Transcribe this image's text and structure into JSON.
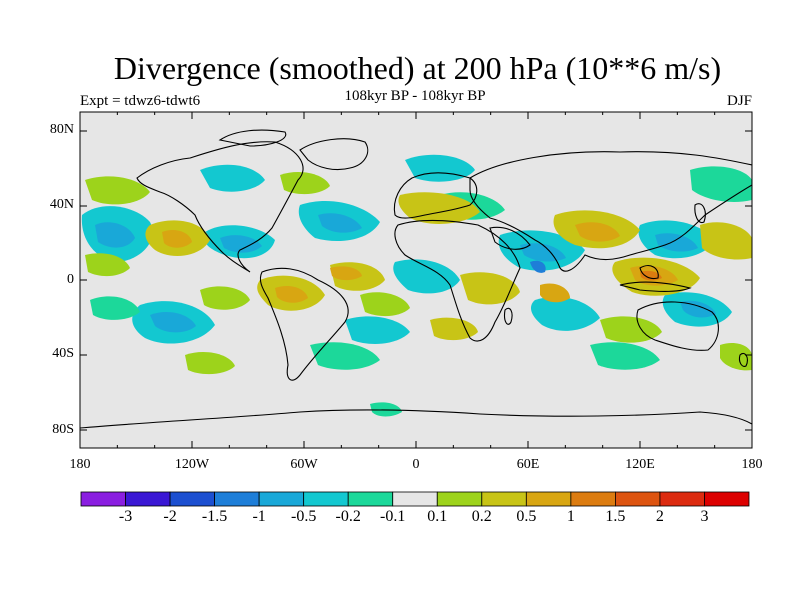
{
  "title": "Divergence (smoothed) at 200 hPa (10**6 m/s)",
  "subtitle": "108kyr BP - 108kyr BP",
  "left_string": "Expt = tdwz6-tdwt6",
  "right_string": "DJF",
  "lat_labels": [
    "80N",
    "40N",
    "0",
    "40S",
    "80S"
  ],
  "lon_labels": [
    "180",
    "120W",
    "60W",
    "0",
    "60E",
    "120E",
    "180"
  ],
  "colorbar": {
    "labels": [
      "-3",
      "-2",
      "-1.5",
      "-1",
      "-0.5",
      "-0.2",
      "-0.1",
      "0.1",
      "0.2",
      "0.5",
      "1",
      "1.5",
      "2",
      "3"
    ],
    "colors": [
      "#8a1ee0",
      "#3a17d4",
      "#1c4fd0",
      "#1e7ed8",
      "#19a8d8",
      "#13c8d0",
      "#1cd89a",
      "#e6e6e6",
      "#9dd31b",
      "#c8c416",
      "#d8a612",
      "#dc7c10",
      "#dd5410",
      "#dc2b10",
      "#dc0000"
    ]
  },
  "chart_data": {
    "type": "heatmap",
    "map_type": "global filled contour",
    "lat_range": [
      -90,
      90
    ],
    "lon_range": [
      -180,
      180
    ],
    "contour_levels": [
      -3,
      -2,
      -1.5,
      -1,
      -0.5,
      -0.2,
      -0.1,
      0.1,
      0.2,
      0.5,
      1,
      1.5,
      2,
      3
    ]
  }
}
